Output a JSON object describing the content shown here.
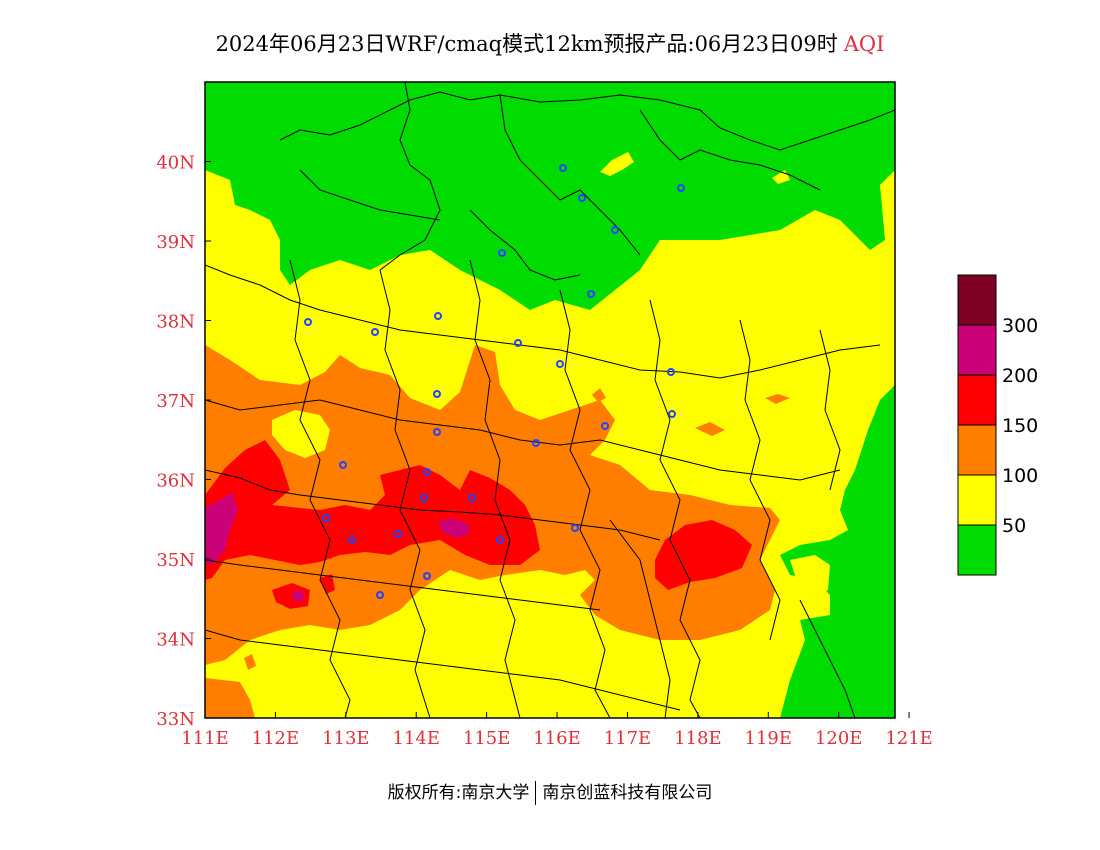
{
  "title": {
    "main": "2024年06月23日WRF/cmaq模式12km预报产品:06月23日09时",
    "variable": "AQI"
  },
  "footer": {
    "left": "版权所有:南京大学",
    "right": "南京创蓝科技有限公司"
  },
  "axes": {
    "x_ticks": [
      "111E",
      "112E",
      "113E",
      "114E",
      "115E",
      "116E",
      "117E",
      "118E",
      "119E",
      "120E",
      "121E"
    ],
    "y_ticks": [
      "40N",
      "39N",
      "38N",
      "37N",
      "36N",
      "35N",
      "34N",
      "33N"
    ],
    "lon_range": [
      111,
      120.8
    ],
    "lat_range": [
      33,
      41
    ],
    "tick_color": "#e0303a"
  },
  "legend": {
    "levels": [
      {
        "color": "#00dc00",
        "label": "50"
      },
      {
        "color": "#ffff00",
        "label": "100"
      },
      {
        "color": "#ff7e00",
        "label": "150"
      },
      {
        "color": "#ff0000",
        "label": "200"
      },
      {
        "color": "#cc0077",
        "label": "300"
      },
      {
        "color": "#7e0023",
        "label": ""
      }
    ]
  },
  "colors": {
    "good": "#00dc00",
    "moderate": "#ffff00",
    "unhealthy_sensitive": "#ff7e00",
    "unhealthy": "#ff0000",
    "very_unhealthy": "#cc0077",
    "hazardous": "#7e0023",
    "station": "#2244ff",
    "boundary": "#000000"
  }
}
